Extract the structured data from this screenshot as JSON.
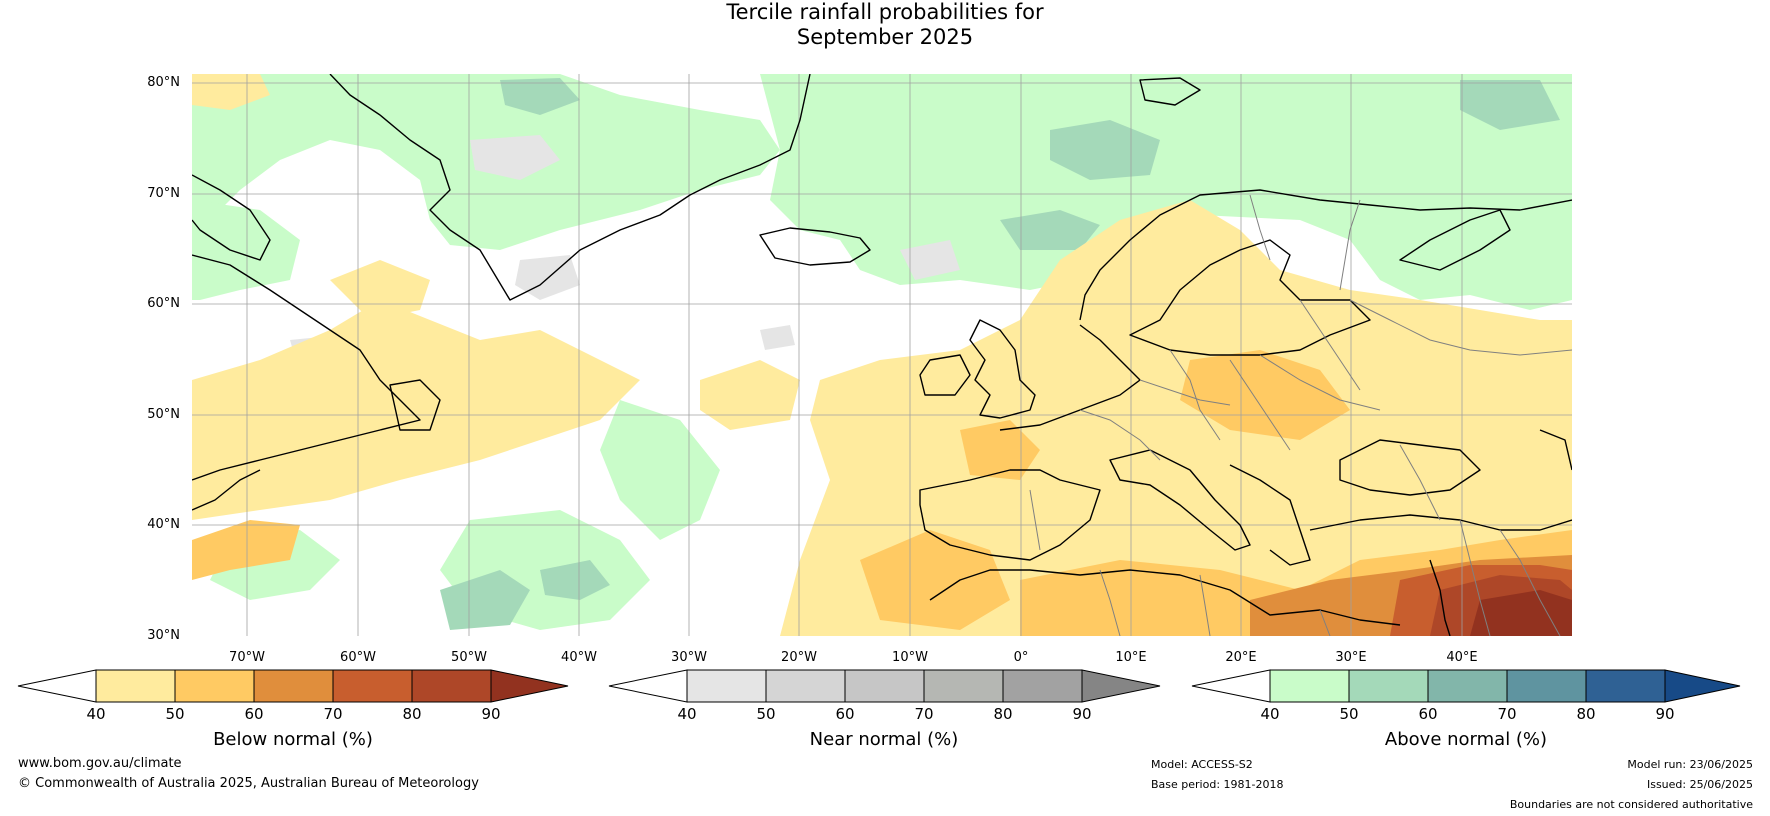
{
  "title": {
    "line1": "Tercile rainfall probabilities for",
    "line2": "September 2025"
  },
  "map": {
    "extent": {
      "lon": [
        -80,
        45
      ],
      "lat": [
        30,
        81
      ]
    },
    "lat_labels": [
      "80°N",
      "70°N",
      "60°N",
      "50°N",
      "40°N",
      "30°N"
    ],
    "lon_labels": [
      "70°W",
      "60°W",
      "50°W",
      "40°W",
      "30°W",
      "20°W",
      "10°W",
      "0°",
      "10°E",
      "20°E",
      "30°E",
      "40°E"
    ],
    "colors": {
      "coast": "#000000",
      "border": "#808080",
      "grid": "#a0a0a0"
    }
  },
  "colorbars": [
    {
      "name": "below",
      "title": "Below normal (%)",
      "ticks": [
        "40",
        "50",
        "60",
        "70",
        "80",
        "90"
      ],
      "colors": [
        "#ffffff",
        "#ffeb9e",
        "#ffca63",
        "#e08e3c",
        "#c85e2e",
        "#ae4728",
        "#92321f"
      ]
    },
    {
      "name": "near",
      "title": "Near normal (%)",
      "ticks": [
        "40",
        "50",
        "60",
        "70",
        "80",
        "90"
      ],
      "colors": [
        "#ffffff",
        "#e5e5e5",
        "#d5d5d5",
        "#c6c6c6",
        "#b5b7b3",
        "#a2a2a2",
        "#858585"
      ]
    },
    {
      "name": "above",
      "title": "Above normal (%)",
      "ticks": [
        "40",
        "50",
        "60",
        "70",
        "80",
        "90"
      ],
      "colors": [
        "#ffffff",
        "#c9fcc9",
        "#a4d9b9",
        "#82b6aa",
        "#5f94a0",
        "#2f6194",
        "#174a87"
      ]
    }
  ],
  "footer": {
    "url": "www.bom.gov.au/climate",
    "copyright": "© Commonwealth of Australia 2025, Australian Bureau of Meteorology",
    "model": "Model: ACCESS-S2",
    "base_period": "Base period: 1981-2018",
    "model_run": "Model run: 23/06/2025",
    "issued": "Issued: 25/06/2025",
    "disclaimer": "Boundaries are not considered authoritative"
  }
}
